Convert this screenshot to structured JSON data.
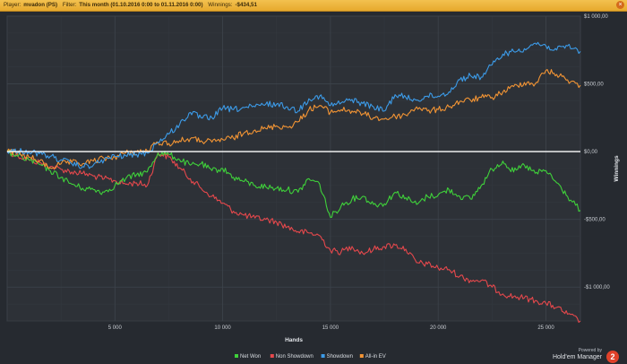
{
  "header": {
    "player_label": "Player:",
    "player_value": "mvadon (PS)",
    "filter_label": "Filter:",
    "filter_value": "This month (01.10.2016 0:00 to 01.11.2016 0:00)",
    "winnings_label": "Winnings:",
    "winnings_value": "-$434,51",
    "close_glyph": "×"
  },
  "branding": {
    "powered_by": "Powered by",
    "name": "Hold'em Manager",
    "badge": "2"
  },
  "chart_data": {
    "type": "line",
    "title": "",
    "xlabel": "Hands",
    "ylabel": "Winnings",
    "xlim": [
      0,
      26600
    ],
    "ylim": [
      -1250,
      1000
    ],
    "grid": true,
    "legend": "bottom-center",
    "x_ticks": [
      5000,
      10000,
      15000,
      20000,
      25000
    ],
    "x_tick_labels": [
      "5 000",
      "10 000",
      "15 000",
      "20 000",
      "25 000"
    ],
    "y_ticks": [
      1000,
      500,
      0,
      -500,
      -1000
    ],
    "y_tick_labels": [
      "$1 000,00",
      "$500,00",
      "$0,00",
      "-$500,00",
      "-$1 000,00"
    ],
    "series": [
      {
        "name": "Net Won",
        "color": "#3fd13a",
        "x": [
          0,
          500,
          1000,
          1500,
          2000,
          2500,
          3000,
          3500,
          4000,
          4500,
          5000,
          5500,
          6000,
          6500,
          7000,
          7500,
          8000,
          8500,
          9000,
          9500,
          10000,
          10500,
          11000,
          11500,
          12000,
          12500,
          13000,
          13500,
          14000,
          14500,
          15000,
          15500,
          16000,
          16500,
          17000,
          17500,
          18000,
          18500,
          19000,
          19500,
          20000,
          20500,
          21000,
          21500,
          22000,
          22500,
          23000,
          23500,
          24000,
          24500,
          25000,
          25500,
          26000,
          26600
        ],
        "y": [
          0,
          -35,
          -60,
          -95,
          -140,
          -190,
          -240,
          -270,
          -280,
          -300,
          -250,
          -200,
          -170,
          -150,
          -10,
          -20,
          -60,
          -100,
          -90,
          -140,
          -125,
          -190,
          -220,
          -250,
          -260,
          -270,
          -280,
          -300,
          -200,
          -240,
          -485,
          -400,
          -350,
          -330,
          -390,
          -385,
          -300,
          -340,
          -390,
          -330,
          -320,
          -280,
          -330,
          -350,
          -250,
          -130,
          -70,
          -150,
          -100,
          -160,
          -140,
          -230,
          -330,
          -434
        ]
      },
      {
        "name": "Non Showdown",
        "color": "#e5484c",
        "x": [
          0,
          500,
          1000,
          1500,
          2000,
          2500,
          3000,
          3500,
          4000,
          4500,
          5000,
          5500,
          6000,
          6500,
          7000,
          7500,
          8000,
          8500,
          9000,
          9500,
          10000,
          10500,
          11000,
          11500,
          12000,
          12500,
          13000,
          13500,
          14000,
          14500,
          15000,
          15500,
          16000,
          16500,
          17000,
          17500,
          18000,
          18500,
          19000,
          19500,
          20000,
          20500,
          21000,
          21500,
          22000,
          22500,
          23000,
          23500,
          24000,
          24500,
          25000,
          25500,
          26000,
          26600
        ],
        "y": [
          0,
          -30,
          -60,
          -80,
          -110,
          -130,
          -150,
          -160,
          -180,
          -200,
          -215,
          -240,
          -230,
          -250,
          -10,
          -40,
          -120,
          -200,
          -270,
          -330,
          -380,
          -440,
          -470,
          -490,
          -500,
          -520,
          -555,
          -590,
          -600,
          -620,
          -730,
          -740,
          -700,
          -750,
          -720,
          -700,
          -690,
          -720,
          -820,
          -830,
          -860,
          -870,
          -920,
          -950,
          -950,
          -1000,
          -1050,
          -1070,
          -1080,
          -1100,
          -1120,
          -1150,
          -1200,
          -1250
        ]
      },
      {
        "name": "Showdown",
        "color": "#3c9be8",
        "x": [
          0,
          500,
          1000,
          1500,
          2000,
          2500,
          3000,
          3500,
          4000,
          4500,
          5000,
          5500,
          6000,
          6500,
          7000,
          7500,
          8000,
          8500,
          9000,
          9500,
          10000,
          10500,
          11000,
          11500,
          12000,
          12500,
          13000,
          13500,
          14000,
          14500,
          15000,
          15500,
          16000,
          16500,
          17000,
          17500,
          18000,
          18500,
          19000,
          19500,
          20000,
          20500,
          21000,
          21500,
          22000,
          22500,
          23000,
          23500,
          24000,
          24500,
          25000,
          25500,
          26000,
          26600
        ],
        "y": [
          0,
          5,
          0,
          -15,
          -35,
          -60,
          -90,
          -110,
          -100,
          -60,
          -35,
          -30,
          -20,
          -10,
          70,
          130,
          200,
          290,
          250,
          250,
          320,
          310,
          325,
          330,
          350,
          350,
          330,
          300,
          390,
          410,
          340,
          360,
          385,
          355,
          330,
          300,
          420,
          400,
          380,
          410,
          410,
          440,
          530,
          560,
          550,
          640,
          720,
          740,
          760,
          800,
          780,
          750,
          780,
          740
        ]
      },
      {
        "name": "All-in EV",
        "color": "#f29434",
        "x": [
          0,
          500,
          1000,
          1500,
          2000,
          2500,
          3000,
          3500,
          4000,
          4500,
          5000,
          5500,
          6000,
          6500,
          7000,
          7500,
          8000,
          8500,
          9000,
          9500,
          10000,
          10500,
          11000,
          11500,
          12000,
          12500,
          13000,
          13500,
          14000,
          14500,
          15000,
          15500,
          16000,
          16500,
          17000,
          17500,
          18000,
          18500,
          19000,
          19500,
          20000,
          20500,
          21000,
          21500,
          22000,
          22500,
          23000,
          23500,
          24000,
          24500,
          25000,
          25500,
          26000,
          26600
        ],
        "y": [
          0,
          -10,
          -40,
          -70,
          -120,
          -90,
          -80,
          -90,
          -70,
          -50,
          -40,
          -10,
          0,
          5,
          70,
          60,
          80,
          95,
          80,
          70,
          90,
          100,
          140,
          160,
          170,
          190,
          180,
          220,
          310,
          340,
          290,
          310,
          300,
          280,
          250,
          240,
          260,
          270,
          330,
          300,
          310,
          330,
          370,
          380,
          400,
          400,
          440,
          480,
          510,
          500,
          600,
          570,
          530,
          490
        ]
      }
    ]
  }
}
